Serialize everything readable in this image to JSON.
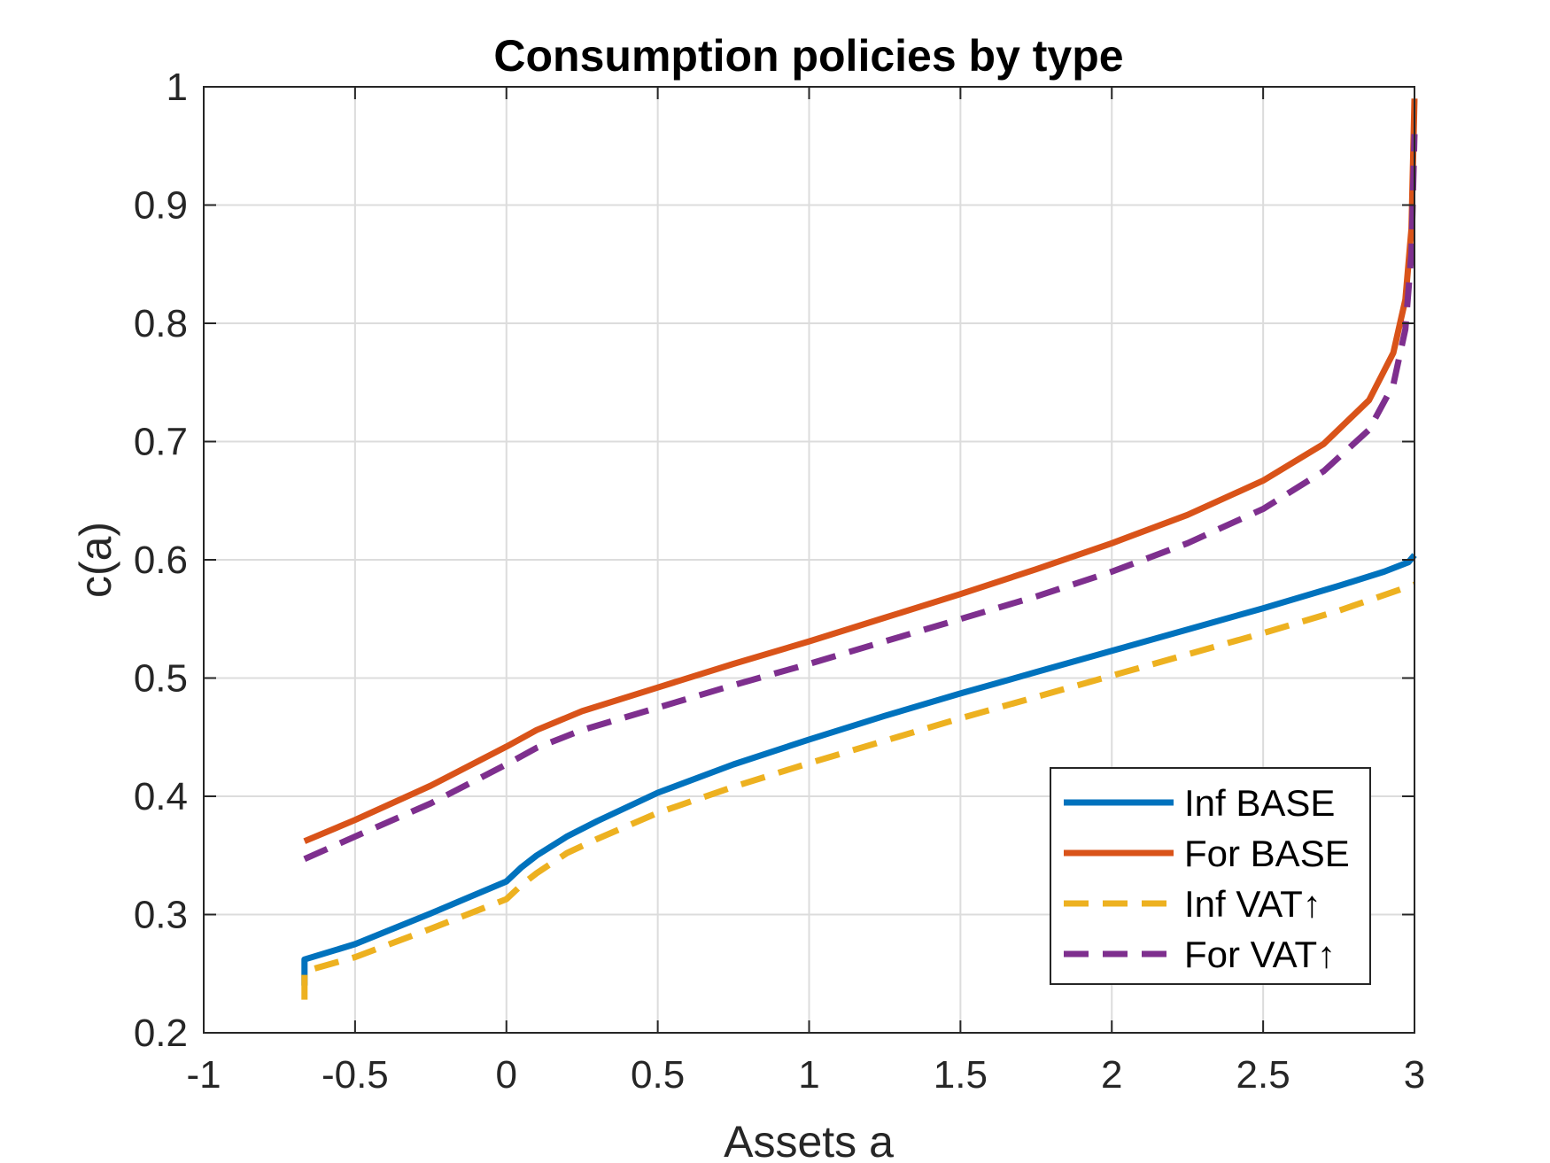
{
  "chart_data": {
    "type": "line",
    "title": "Consumption policies by type",
    "xlabel": "Assets a",
    "ylabel": "c(a)",
    "xlim": [
      -1,
      3
    ],
    "ylim": [
      0.2,
      1
    ],
    "xticks": [
      -1,
      -0.5,
      0,
      0.5,
      1,
      1.5,
      2,
      2.5,
      3
    ],
    "xtick_labels": [
      "-1",
      "-0.5",
      "0",
      "0.5",
      "1",
      "1.5",
      "2",
      "2.5",
      "3"
    ],
    "yticks": [
      0.2,
      0.3,
      0.4,
      0.5,
      0.6,
      0.7,
      0.8,
      0.9,
      1
    ],
    "ytick_labels": [
      "0.2",
      "0.3",
      "0.4",
      "0.5",
      "0.6",
      "0.7",
      "0.8",
      "0.9",
      "1"
    ],
    "grid": true,
    "legend_position": "bottom-right",
    "series": [
      {
        "name": "Inf BASE",
        "color": "#0072BD",
        "style": "solid",
        "x": [
          -0.667,
          -0.667,
          -0.5,
          -0.25,
          0,
          0.05,
          0.1,
          0.2,
          0.3,
          0.5,
          0.75,
          1,
          1.25,
          1.5,
          1.75,
          2,
          2.25,
          2.5,
          2.75,
          2.9,
          2.98,
          3.0
        ],
        "y": [
          0.24,
          0.262,
          0.275,
          0.301,
          0.328,
          0.34,
          0.35,
          0.366,
          0.379,
          0.403,
          0.427,
          0.448,
          0.468,
          0.487,
          0.505,
          0.523,
          0.541,
          0.559,
          0.578,
          0.59,
          0.598,
          0.604
        ]
      },
      {
        "name": "For BASE",
        "color": "#D95319",
        "style": "solid",
        "x": [
          -0.667,
          -0.5,
          -0.25,
          0,
          0.1,
          0.25,
          0.5,
          0.75,
          1,
          1.25,
          1.5,
          1.75,
          2,
          2.25,
          2.5,
          2.7,
          2.85,
          2.93,
          2.97,
          2.99,
          3.0
        ],
        "y": [
          0.362,
          0.38,
          0.409,
          0.442,
          0.456,
          0.472,
          0.492,
          0.512,
          0.531,
          0.551,
          0.571,
          0.592,
          0.614,
          0.638,
          0.667,
          0.698,
          0.735,
          0.775,
          0.82,
          0.88,
          0.99
        ]
      },
      {
        "name": "Inf VAT↑",
        "color": "#EDB120",
        "style": "dashed",
        "x": [
          -0.667,
          -0.667,
          -0.5,
          -0.25,
          0,
          0.05,
          0.1,
          0.2,
          0.3,
          0.5,
          0.75,
          1,
          1.25,
          1.5,
          1.75,
          2,
          2.25,
          2.5,
          2.75,
          3.0
        ],
        "y": [
          0.228,
          0.252,
          0.264,
          0.288,
          0.313,
          0.325,
          0.335,
          0.352,
          0.364,
          0.386,
          0.408,
          0.428,
          0.447,
          0.466,
          0.484,
          0.502,
          0.52,
          0.538,
          0.557,
          0.579
        ]
      },
      {
        "name": "For VAT↑",
        "color": "#7E2F8E",
        "style": "dashed",
        "x": [
          -0.667,
          -0.5,
          -0.25,
          0,
          0.1,
          0.25,
          0.5,
          0.75,
          1,
          1.25,
          1.5,
          1.75,
          2,
          2.25,
          2.5,
          2.7,
          2.85,
          2.93,
          2.97,
          2.99,
          3.0
        ],
        "y": [
          0.347,
          0.366,
          0.394,
          0.427,
          0.441,
          0.456,
          0.475,
          0.494,
          0.512,
          0.531,
          0.55,
          0.569,
          0.59,
          0.614,
          0.643,
          0.675,
          0.71,
          0.748,
          0.795,
          0.86,
          0.96
        ]
      }
    ]
  }
}
